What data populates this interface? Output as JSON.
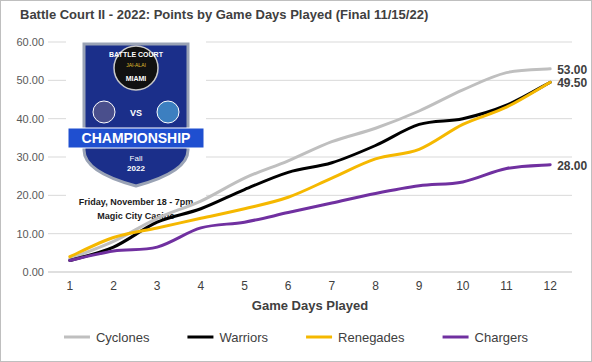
{
  "chart_data": {
    "type": "line",
    "title": "Battle Court II - 2022: Points by Game Days Played  (Final 11/15/22)",
    "x_label": "Game Days Played",
    "categories": [
      "1",
      "2",
      "3",
      "4",
      "5",
      "6",
      "7",
      "8",
      "9",
      "10",
      "11",
      "12"
    ],
    "ylim": [
      0,
      60
    ],
    "yticks": [
      {
        "value": 0,
        "label": "0.00"
      },
      {
        "value": 10,
        "label": "10.00"
      },
      {
        "value": 20,
        "label": "20.00"
      },
      {
        "value": 30,
        "label": "30.00"
      },
      {
        "value": 40,
        "label": "40.00"
      },
      {
        "value": 50,
        "label": "50.00"
      },
      {
        "value": 60,
        "label": "60.00"
      }
    ],
    "grid": true,
    "legend": "bottom",
    "line_style": "smooth",
    "series": [
      {
        "name": "Cyclones",
        "color": "#bfbfbf",
        "values": [
          3.5,
          8,
          14,
          18.5,
          24.5,
          29,
          34,
          37.5,
          42,
          47.5,
          52,
          53
        ],
        "value_labels": [
          null,
          null,
          null,
          null,
          null,
          null,
          null,
          null,
          null,
          null,
          null,
          "53.00"
        ]
      },
      {
        "name": "Warriors",
        "color": "#000000",
        "values": [
          3,
          6.5,
          13,
          16.5,
          21.5,
          26,
          28.5,
          33,
          38.5,
          40,
          43.5,
          49.5
        ]
      },
      {
        "name": "Renegades",
        "color": "#f5b800",
        "values": [
          4,
          9,
          11.5,
          14,
          16.5,
          19.5,
          24.5,
          29.5,
          32,
          38.5,
          43,
          49.5
        ],
        "value_labels": [
          null,
          null,
          null,
          null,
          null,
          null,
          null,
          null,
          null,
          null,
          null,
          "49.50"
        ]
      },
      {
        "name": "Chargers",
        "color": "#7030a0",
        "values": [
          3,
          5.5,
          6.5,
          11.5,
          13,
          15.5,
          18,
          20.5,
          22.5,
          23.5,
          27,
          28
        ],
        "value_labels": [
          null,
          null,
          null,
          null,
          null,
          null,
          null,
          null,
          null,
          null,
          null,
          "28.00"
        ]
      }
    ],
    "annotations": [
      "BATTLE COURT",
      "JAI-ALAI",
      "MIAMI",
      "VS",
      "CHAMPIONSHIP",
      "Fall",
      "2022",
      "Friday, November 18 - 7pm",
      "Magic City Casino"
    ]
  }
}
